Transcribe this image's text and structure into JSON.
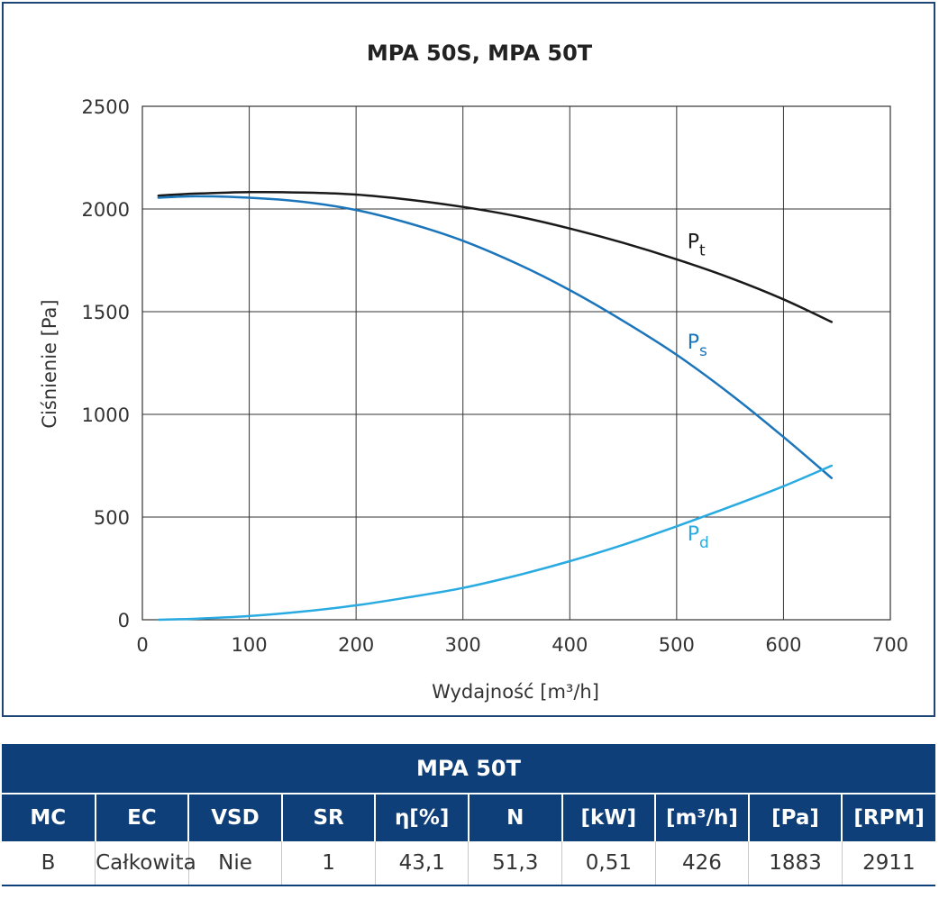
{
  "chart_data": {
    "type": "line",
    "title": "MPA 50S, MPA 50T",
    "xlabel": "Wydajność [m³/h]",
    "ylabel": "Ciśnienie [Pa]",
    "xlim": [
      0,
      700
    ],
    "ylim": [
      0,
      2500
    ],
    "x_ticks": [
      "0",
      "100",
      "200",
      "300",
      "400",
      "500",
      "600",
      "700"
    ],
    "y_ticks": [
      "0",
      "500",
      "1000",
      "1500",
      "2000",
      "2500"
    ],
    "grid": true,
    "series": [
      {
        "name": "Pt",
        "label_main": "P",
        "label_sub": "t",
        "label_at": [
          510,
          1810
        ],
        "color": "#1a1a1a",
        "x": [
          15,
          50,
          100,
          150,
          200,
          250,
          300,
          350,
          400,
          450,
          500,
          550,
          600,
          645
        ],
        "y": [
          2065,
          2075,
          2082,
          2080,
          2070,
          2045,
          2010,
          1965,
          1905,
          1835,
          1755,
          1665,
          1560,
          1450
        ]
      },
      {
        "name": "Ps",
        "label_main": "P",
        "label_sub": "s",
        "label_at": [
          510,
          1320
        ],
        "color": "#1b75bb",
        "x": [
          15,
          50,
          100,
          150,
          200,
          250,
          300,
          350,
          400,
          450,
          500,
          550,
          600,
          645
        ],
        "y": [
          2055,
          2062,
          2055,
          2035,
          1995,
          1930,
          1845,
          1735,
          1605,
          1455,
          1290,
          1100,
          890,
          690
        ]
      },
      {
        "name": "Pd",
        "label_main": "P",
        "label_sub": "d",
        "label_at": [
          510,
          385
        ],
        "color": "#29abe2",
        "x": [
          15,
          50,
          100,
          150,
          200,
          250,
          300,
          350,
          400,
          450,
          500,
          550,
          600,
          645
        ],
        "y": [
          0,
          5,
          18,
          40,
          70,
          110,
          155,
          215,
          285,
          365,
          455,
          550,
          650,
          750
        ]
      }
    ]
  },
  "table": {
    "title": "MPA 50T",
    "headers": [
      "MC",
      "EC",
      "VSD",
      "SR",
      "η[%]",
      "N",
      "[kW]",
      "[m³/h]",
      "[Pa]",
      "[RPM]"
    ],
    "row": [
      "B",
      "Całkowita",
      "Nie",
      "1",
      "43,1",
      "51,3",
      "0,51",
      "426",
      "1883",
      "2911"
    ]
  }
}
